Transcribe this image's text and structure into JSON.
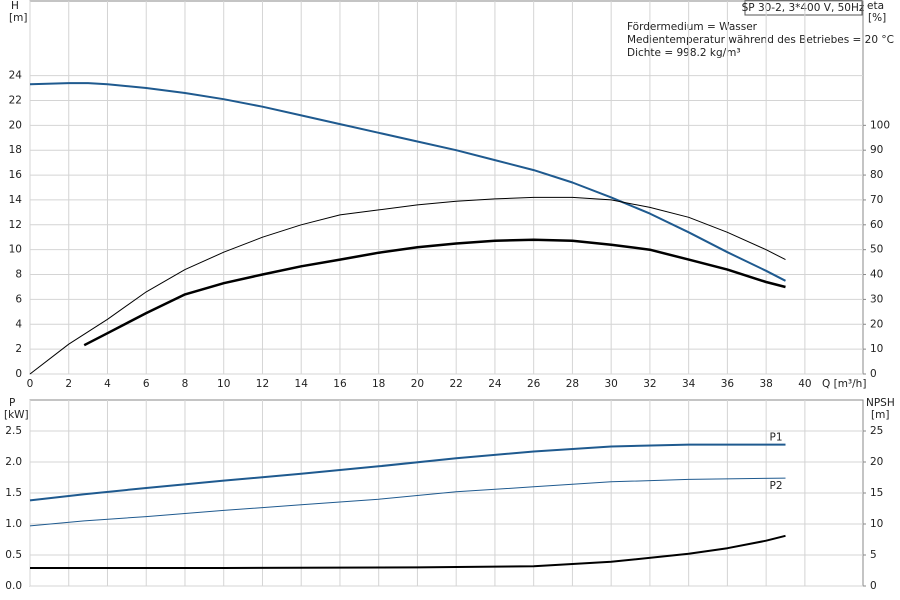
{
  "chart_data": [
    {
      "type": "line",
      "title": "SP 30-2, 3*400 V, 50Hz",
      "annotations": [
        "Fördermedium = Wasser",
        "Medientemperatur während des Betriebes = 20 °C",
        "Dichte = 998.2 kg/m³"
      ],
      "ylabel": "H",
      "ylabel_unit": "[m]",
      "y2label": "eta",
      "y2label_unit": "[%]",
      "xlabel": "Q [m³/h]",
      "xlim": [
        0,
        43
      ],
      "xticks": [
        0,
        2,
        4,
        6,
        8,
        10,
        12,
        14,
        16,
        18,
        20,
        22,
        24,
        26,
        28,
        30,
        32,
        34,
        36,
        38,
        40
      ],
      "ylim": [
        0,
        30
      ],
      "yticks": [
        0,
        2,
        4,
        6,
        8,
        10,
        12,
        14,
        16,
        18,
        20,
        22,
        24
      ],
      "y2lim": [
        0,
        150
      ],
      "y2ticks": [
        0,
        10,
        20,
        30,
        40,
        50,
        60,
        70,
        80,
        90,
        100
      ],
      "grid": true,
      "series": [
        {
          "color": "#1f5a8f",
          "linewidth": 2,
          "axis": "y",
          "x": [
            0,
            2,
            3,
            4,
            6,
            8,
            10,
            12,
            14,
            16,
            18,
            20,
            22,
            24,
            26,
            28,
            30,
            32,
            34,
            36,
            38,
            39
          ],
          "values": [
            23.3,
            23.4,
            23.4,
            23.3,
            23.0,
            22.6,
            22.1,
            21.5,
            20.8,
            20.1,
            19.4,
            18.7,
            18.0,
            17.2,
            16.4,
            15.4,
            14.2,
            12.9,
            11.4,
            9.8,
            8.3,
            7.5
          ]
        },
        {
          "color": "#000000",
          "linewidth": 1,
          "axis": "y2",
          "x": [
            0,
            2,
            4,
            6,
            8,
            10,
            12,
            14,
            16,
            18,
            20,
            22,
            24,
            26,
            28,
            30,
            32,
            34,
            36,
            38,
            39
          ],
          "values": [
            0,
            12,
            22,
            33,
            42,
            49,
            55,
            60,
            64,
            66,
            68,
            69.5,
            70.4,
            71,
            71,
            70,
            67,
            63,
            57,
            50,
            46
          ]
        },
        {
          "color": "#000000",
          "linewidth": 2.5,
          "axis": "y2",
          "x": [
            2.8,
            4,
            6,
            8,
            10,
            12,
            14,
            16,
            18,
            20,
            22,
            24,
            26,
            28,
            30,
            32,
            34,
            36,
            38,
            39
          ],
          "values": [
            11.6,
            16.4,
            24.5,
            32,
            36.5,
            40,
            43.3,
            46,
            48.8,
            51,
            52.5,
            53.6,
            54,
            53.6,
            52,
            50,
            46,
            42,
            37,
            35
          ]
        }
      ]
    },
    {
      "type": "line",
      "ylabel": "P",
      "ylabel_unit": "[kW]",
      "y2label": "NPSH",
      "y2label_unit": "[m]",
      "xlim": [
        0,
        43
      ],
      "xticks": [
        0,
        2,
        4,
        6,
        8,
        10,
        12,
        14,
        16,
        18,
        20,
        22,
        24,
        26,
        28,
        30,
        32,
        34,
        36,
        38,
        40
      ],
      "ylim": [
        0,
        3
      ],
      "yticks": [
        {
          "value": 0,
          "label": "0.0"
        },
        0.5,
        {
          "value": 1,
          "label": "1.0"
        },
        1.5,
        {
          "value": 2,
          "label": "2.0"
        },
        2.5
      ],
      "y2lim": [
        0,
        30
      ],
      "y2ticks": [
        0,
        5,
        10,
        15,
        20,
        25
      ],
      "grid": true,
      "series": [
        {
          "name": "P1",
          "color": "#1f5a8f",
          "linewidth": 2,
          "axis": "y",
          "x": [
            0,
            2.8,
            6,
            10,
            14,
            18,
            22,
            26,
            30,
            34,
            39
          ],
          "values": [
            1.38,
            1.48,
            1.58,
            1.7,
            1.81,
            1.93,
            2.06,
            2.17,
            2.25,
            2.28,
            2.28
          ]
        },
        {
          "name": "P2",
          "color": "#1f5a8f",
          "linewidth": 1,
          "axis": "y",
          "x": [
            0,
            2.8,
            6,
            10,
            14,
            18,
            22,
            26,
            30,
            34,
            39
          ],
          "values": [
            0.97,
            1.05,
            1.12,
            1.22,
            1.31,
            1.4,
            1.52,
            1.6,
            1.68,
            1.72,
            1.74
          ]
        },
        {
          "color": "#000000",
          "linewidth": 2,
          "axis": "y2",
          "x": [
            0,
            2.8,
            10,
            20,
            26,
            30,
            34,
            36,
            38,
            39
          ],
          "values": [
            2.9,
            2.9,
            2.9,
            3.0,
            3.2,
            3.9,
            5.2,
            6.1,
            7.3,
            8.1
          ]
        }
      ]
    }
  ]
}
